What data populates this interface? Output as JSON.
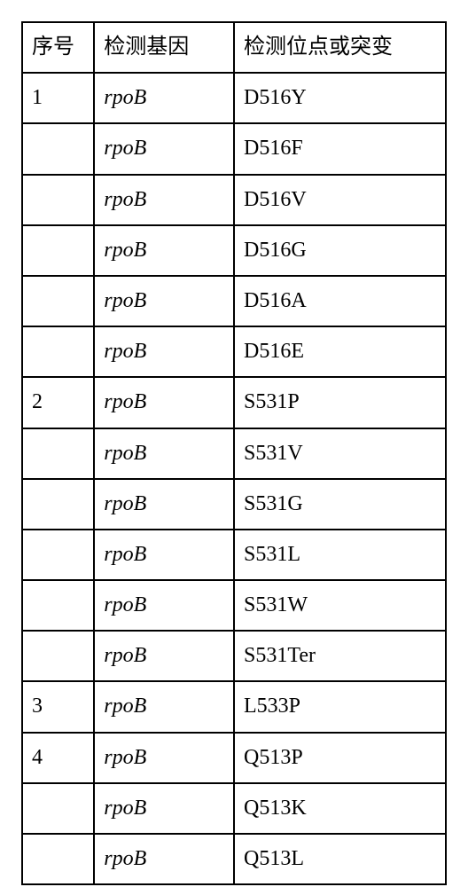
{
  "table": {
    "headers": {
      "seq": "序号",
      "gene": "检测基因",
      "mutation": "检测位点或突变"
    },
    "rows": [
      {
        "seq": "1",
        "gene": "rpoB",
        "mutation": "D516Y"
      },
      {
        "seq": "",
        "gene": "rpoB",
        "mutation": "D516F"
      },
      {
        "seq": "",
        "gene": "rpoB",
        "mutation": "D516V"
      },
      {
        "seq": "",
        "gene": "rpoB",
        "mutation": "D516G"
      },
      {
        "seq": "",
        "gene": "rpoB",
        "mutation": "D516A"
      },
      {
        "seq": "",
        "gene": "rpoB",
        "mutation": "D516E"
      },
      {
        "seq": "2",
        "gene": "rpoB",
        "mutation": "S531P"
      },
      {
        "seq": "",
        "gene": "rpoB",
        "mutation": "S531V"
      },
      {
        "seq": "",
        "gene": "rpoB",
        "mutation": "S531G"
      },
      {
        "seq": "",
        "gene": "rpoB",
        "mutation": "S531L"
      },
      {
        "seq": "",
        "gene": "rpoB",
        "mutation": "S531W"
      },
      {
        "seq": "",
        "gene": "rpoB",
        "mutation": "S531Ter"
      },
      {
        "seq": "3",
        "gene": "rpoB",
        "mutation": "L533P"
      },
      {
        "seq": "4",
        "gene": "rpoB",
        "mutation": "Q513P"
      },
      {
        "seq": "",
        "gene": "rpoB",
        "mutation": "Q513K"
      },
      {
        "seq": "",
        "gene": "rpoB",
        "mutation": "Q513L"
      }
    ]
  },
  "styling": {
    "border_color": "#000000",
    "border_width": 2,
    "background_color": "#ffffff",
    "font_size": 24,
    "gene_italic": true,
    "col_widths_pct": [
      17,
      33,
      50
    ]
  }
}
